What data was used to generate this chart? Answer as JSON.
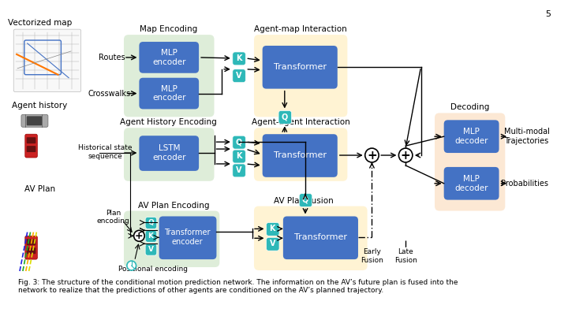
{
  "title_num": "5",
  "fig_caption": "Fig. 3: The structure of the conditional motion prediction network. The information on the AV’s future plan is fused into the\nnetwork to realize that the predictions of other agents are conditioned on the AV’s planned trajectory.",
  "bg_color": "#ffffff",
  "blue_box_color": "#4472c4",
  "teal_box_color": "#2eb8b8",
  "green_bg_color": "#d9ead3",
  "yellow_bg_color": "#fff2cc",
  "peach_bg_color": "#fce5cd",
  "blue_box_text_color": "#ffffff",
  "teal_box_text_color": "#ffffff",
  "section_labels": {
    "map_encoding": "Map Encoding",
    "agent_history_encoding": "Agent History Encoding",
    "av_plan_encoding": "AV Plan Encoding",
    "agent_map_interaction": "Agent-map Interaction",
    "agent_agent_interaction": "Agent-agent Interaction",
    "av_plan_fusion": "AV Plan Fusion",
    "decoding": "Decoding"
  },
  "left_labels": {
    "vectorized_map": "Vectorized map",
    "agent_history": "Agent history",
    "av_plan": "AV Plan"
  },
  "right_labels": {
    "multi_modal": "Multi-modal\nTrajectories",
    "probabilities": "Probabilities"
  },
  "routes_label": "Routes",
  "crosswalks_label": "Crosswalks",
  "historical_state": "Historical state\nsequence",
  "plan_encoding": "Plan\nencoding",
  "positional_encoding": "Positional encoding",
  "early_fusion": "Early\nFusion",
  "late_fusion": "Late\nFusion"
}
